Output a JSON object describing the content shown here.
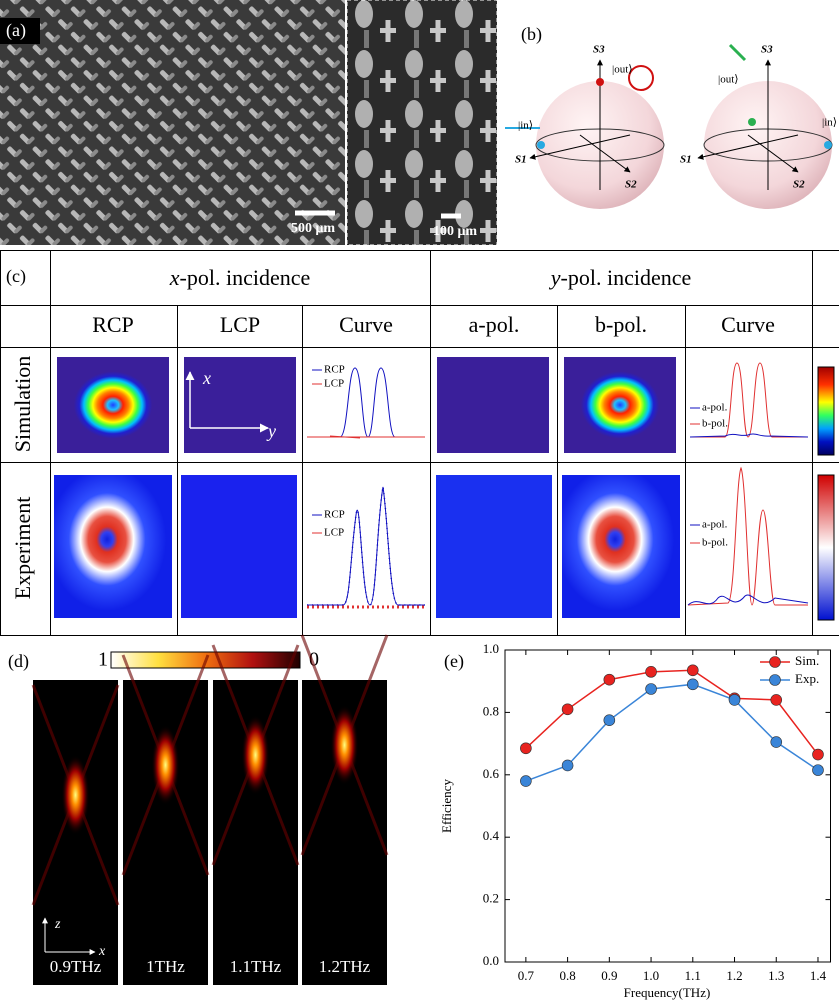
{
  "panel_a": {
    "label": "(a)",
    "scale_bars": [
      "500 μm",
      "100 μm"
    ]
  },
  "panel_b": {
    "label": "(b)",
    "left_sphere": {
      "s3": "S3",
      "s1": "S1",
      "s2": "S2",
      "out": "|out⟩",
      "in": "|in⟩"
    },
    "right_sphere": {
      "s3": "S3",
      "s1": "S1",
      "s2": "S2",
      "out": "|out⟩",
      "in": "|in⟩"
    }
  },
  "panel_c": {
    "label": "(c)",
    "groups": [
      {
        "var": "x",
        "text": "-pol. incidence"
      },
      {
        "var": "y",
        "text": "-pol. incidence"
      }
    ],
    "columns": [
      "RCP",
      "LCP",
      "Curve",
      "a-pol.",
      "b-pol.",
      "Curve"
    ],
    "rows": [
      "Simulation",
      "Experiment"
    ],
    "axes": [
      "x",
      "y"
    ],
    "legends": [
      [
        "RCP",
        "LCP"
      ],
      [
        "a-pol.",
        "b-pol."
      ],
      [
        "RCP",
        "LCP"
      ],
      [
        "a-pol.",
        "b-pol."
      ]
    ]
  },
  "panel_d": {
    "label": "(d)",
    "colorbar_ticks": [
      1,
      0
    ],
    "axes": [
      "z",
      "x"
    ],
    "frequencies": [
      "0.9THz",
      "1THz",
      "1.1THz",
      "1.2THz"
    ]
  },
  "chart_data": {
    "type": "line",
    "label": "(e)",
    "x_label": "Frequency(THz)",
    "y_label": "Efficiency",
    "x": [
      0.7,
      0.8,
      0.9,
      1.0,
      1.1,
      1.2,
      1.3,
      1.4
    ],
    "series": [
      {
        "name": "Sim.",
        "color": "#e8231f",
        "values": [
          0.685,
          0.81,
          0.905,
          0.93,
          0.935,
          0.845,
          0.84,
          0.665
        ]
      },
      {
        "name": "Exp.",
        "color": "#3a85d8",
        "values": [
          0.58,
          0.63,
          0.775,
          0.875,
          0.89,
          0.84,
          0.705,
          0.615
        ]
      }
    ],
    "xlim": [
      0.65,
      1.43
    ],
    "ylim": [
      0,
      1.0
    ],
    "xticks": [
      0.7,
      0.8,
      0.9,
      {
        "value": 1.0,
        "label": "1.0"
      },
      1.1,
      1.2,
      1.3,
      1.4
    ],
    "yticks": [
      {
        "value": 0,
        "label": "0.0"
      },
      0.2,
      0.4,
      0.6,
      0.8,
      {
        "value": 1.0,
        "label": "1.0"
      }
    ],
    "legend": "upper right",
    "grid": false
  }
}
